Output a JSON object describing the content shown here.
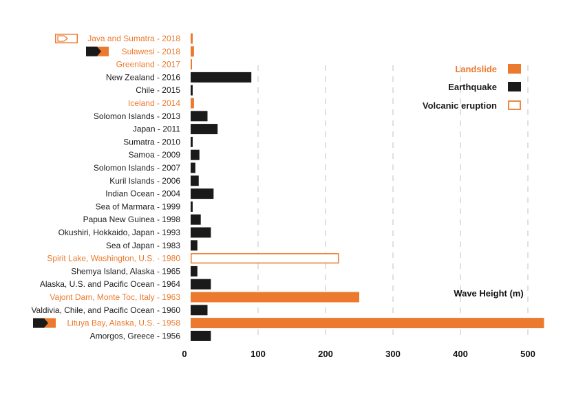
{
  "colors": {
    "landslide": "#ec7a2e",
    "earthquake": "#1a1a1a",
    "label_default": "#1a1a1a",
    "grid": "#cccccc"
  },
  "chart_data": {
    "type": "bar",
    "orientation": "horizontal",
    "title": "",
    "xlabel": "Wave Height (m)",
    "ylabel": "",
    "xlim": [
      0,
      525
    ],
    "xticks": [
      0,
      100,
      200,
      300,
      400,
      500
    ],
    "grid": "vertical dashed",
    "legend_position": "top-right",
    "legend": [
      {
        "label": "Landslide",
        "type": "landslide"
      },
      {
        "label": "Earthquake",
        "type": "earthquake"
      },
      {
        "label": "Volcanic eruption",
        "type": "volcanic"
      }
    ],
    "categories": [
      "Java and Sumatra - 2018",
      "Sulawesi - 2018",
      "Greenland - 2017",
      "New Zealand - 2016",
      "Chile - 2015",
      "Iceland - 2014",
      "Solomon Islands - 2013",
      "Japan - 2011",
      "Sumatra - 2010",
      "Samoa - 2009",
      "Solomon Islands - 2007",
      "Kuril Islands - 2006",
      "Indian Ocean - 2004",
      "Sea of Marmara - 1999",
      "Papua New Guinea - 1998",
      "Okushiri, Hokkaido, Japan - 1993",
      "Sea of Japan - 1983",
      "Spirit Lake, Washington, U.S. - 1980",
      "Shemya Island, Alaska - 1965",
      "Alaska, U.S. and Pacific Ocean - 1964",
      "Vajont Dam, Monte Toc, Italy - 1963",
      "Valdivia, Chile, and Pacific Ocean - 1960",
      "Lituya Bay, Alaska, U.S. - 1958",
      "Amorgos, Greece - 1956"
    ],
    "values": [
      2,
      5,
      1,
      90,
      3,
      5,
      25,
      40,
      3,
      13,
      7,
      12,
      34,
      3,
      15,
      30,
      10,
      220,
      10,
      30,
      250,
      25,
      524,
      30
    ],
    "types": [
      "volcanic",
      "landslide",
      "landslide",
      "earthquake",
      "earthquake",
      "landslide",
      "earthquake",
      "earthquake",
      "earthquake",
      "earthquake",
      "earthquake",
      "earthquake",
      "earthquake",
      "earthquake",
      "earthquake",
      "earthquake",
      "earthquake",
      "volcanic",
      "earthquake",
      "earthquake",
      "landslide",
      "earthquake",
      "landslide",
      "earthquake"
    ],
    "markers": [
      {
        "category": "Java and Sumatra - 2018",
        "icon": "volcanic-marker-icon"
      },
      {
        "category": "Sulawesi - 2018",
        "icon": "earthquake-landslide-marker-icon"
      },
      {
        "category": "Lituya Bay, Alaska, U.S. - 1958",
        "icon": "earthquake-landslide-marker-icon"
      }
    ]
  }
}
